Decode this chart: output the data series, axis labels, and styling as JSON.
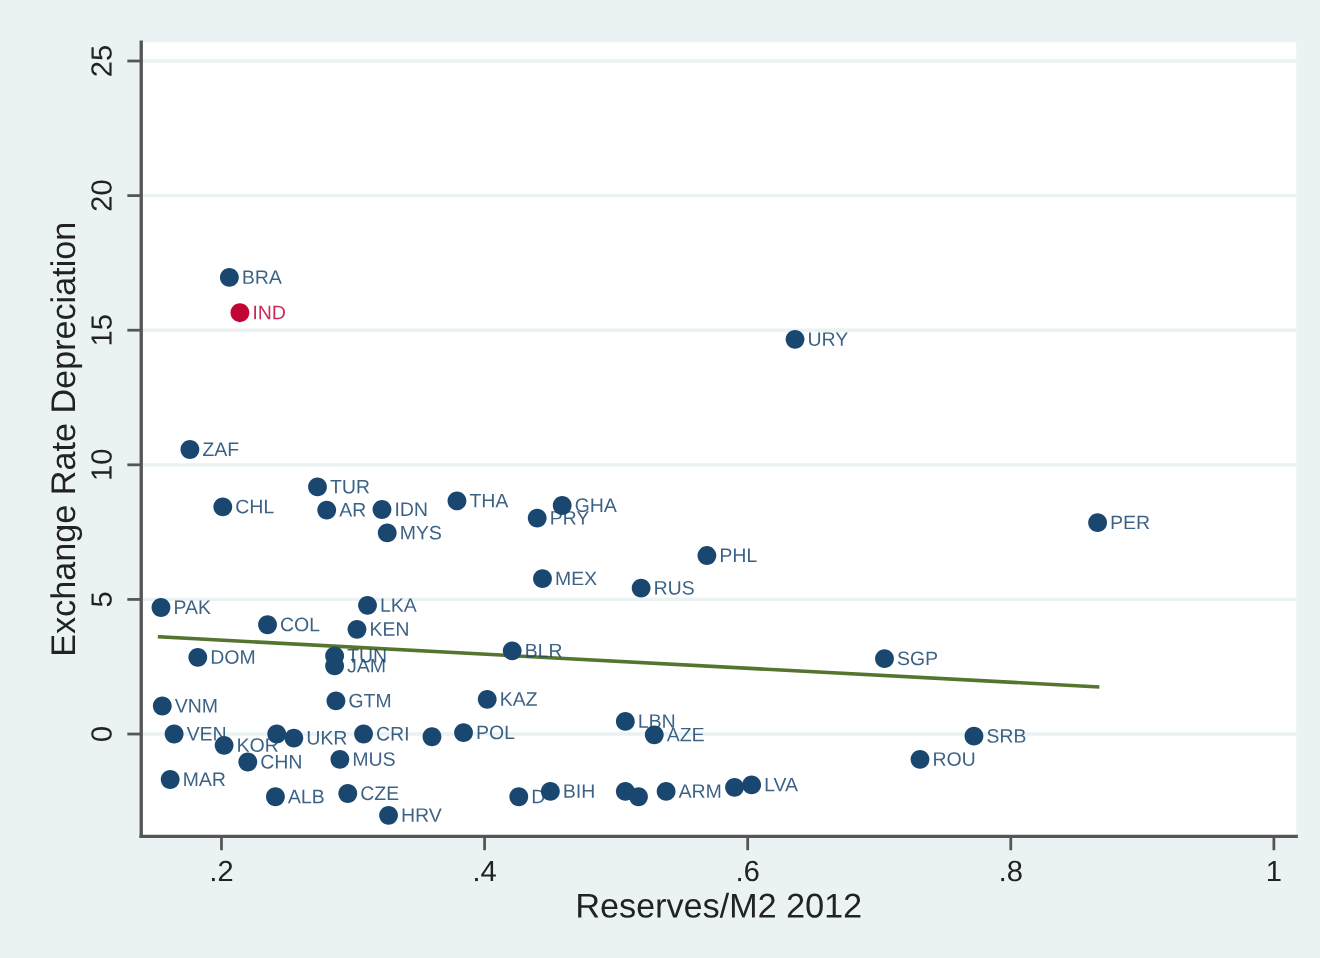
{
  "chart_data": {
    "type": "scatter",
    "xlabel": "Reserves/M2 2012",
    "ylabel": "Exchange Rate Depreciation",
    "xlim": [
      0.139,
      1.017
    ],
    "ylim": [
      -3.8,
      25.7
    ],
    "xticks": [
      {
        "value": 0.2,
        "label": ".2"
      },
      {
        "value": 0.4,
        "label": ".4"
      },
      {
        "value": 0.6,
        "label": ".6"
      },
      {
        "value": 0.8,
        "label": ".8"
      },
      1
    ],
    "yticks": [
      0,
      5,
      10,
      15,
      20,
      25
    ],
    "grid": "y",
    "marker": "circle",
    "series": [
      {
        "x": [
          0.206,
          0.214,
          0.176,
          0.273,
          0.201,
          0.28,
          0.322,
          0.326,
          0.379,
          0.44,
          0.459,
          0.636,
          0.866,
          0.569,
          0.444,
          0.519,
          0.154,
          0.311,
          0.235,
          0.303,
          0.182,
          0.286,
          0.286,
          0.421,
          0.704,
          0.155,
          0.287,
          0.402,
          0.507,
          0.164,
          0.202,
          0.22,
          0.161,
          0.242,
          0.255,
          0.308,
          0.29,
          0.36,
          0.384,
          0.529,
          0.772,
          0.731,
          0.241,
          0.296,
          0.327,
          0.426,
          0.45,
          0.507,
          0.517,
          0.538,
          0.59,
          0.603
        ],
        "values": [
          16.96,
          15.65,
          10.57,
          9.18,
          8.44,
          8.32,
          8.34,
          7.47,
          8.66,
          8.02,
          8.49,
          14.66,
          7.85,
          6.63,
          5.77,
          5.42,
          4.7,
          4.78,
          4.06,
          3.89,
          2.85,
          2.9,
          2.53,
          3.09,
          2.8,
          1.04,
          1.23,
          1.29,
          0.47,
          0.0,
          -0.42,
          -1.04,
          -1.69,
          0.0,
          -0.15,
          0.0,
          -0.94,
          -0.1,
          0.05,
          -0.03,
          -0.08,
          -0.94,
          -2.33,
          -2.21,
          -3.02,
          -2.33,
          -2.13,
          -2.13,
          -2.33,
          -2.13,
          -1.98,
          -1.89
        ],
        "colors": [
          "#1a476f",
          "#c10534",
          "#1a476f",
          "#1a476f",
          "#1a476f",
          "#1a476f",
          "#1a476f",
          "#1a476f",
          "#1a476f",
          "#1a476f",
          "#1a476f",
          "#1a476f",
          "#1a476f",
          "#1a476f",
          "#1a476f",
          "#1a476f",
          "#1a476f",
          "#1a476f",
          "#1a476f",
          "#1a476f",
          "#1a476f",
          "#1a476f",
          "#1a476f",
          "#1a476f",
          "#1a476f",
          "#1a476f",
          "#1a476f",
          "#1a476f",
          "#1a476f",
          "#1a476f",
          "#1a476f",
          "#1a476f",
          "#1a476f",
          "#1a476f",
          "#1a476f",
          "#1a476f",
          "#1a476f",
          "#1a476f",
          "#1a476f",
          "#1a476f",
          "#1a476f",
          "#1a476f",
          "#1a476f",
          "#1a476f",
          "#1a476f",
          "#1a476f",
          "#1a476f",
          "#1a476f",
          "#1a476f",
          "#1a476f",
          "#1a476f",
          "#1a476f"
        ],
        "value_labels": [
          "BRA",
          "IND",
          "ZAF",
          "TUR",
          "CHL",
          "AR",
          "IDN",
          "MYS",
          "THA",
          "PRY",
          "GHA",
          "URY",
          "PER",
          "PHL",
          "MEX",
          "RUS",
          "PAK",
          "LKA",
          "COL",
          "KEN",
          "DOM",
          "TUN",
          "JAM",
          "BLR",
          "SGP",
          "VNM",
          "GTM",
          "KAZ",
          "LBN",
          "VEN",
          "KOR",
          "CHN",
          "MAR",
          null,
          "UKR",
          "CRI",
          "MUS",
          null,
          "POL",
          "AZE",
          "SRB",
          "ROU",
          "ALB",
          "CZE",
          "HRV",
          "D",
          "BIH",
          null,
          null,
          "ARM",
          null,
          "LVA"
        ]
      },
      {
        "type": "line",
        "marker": "none",
        "x": [
          0.153,
          0.866
        ],
        "values": [
          3.61,
          1.75
        ],
        "color": "#55752f"
      }
    ]
  }
}
